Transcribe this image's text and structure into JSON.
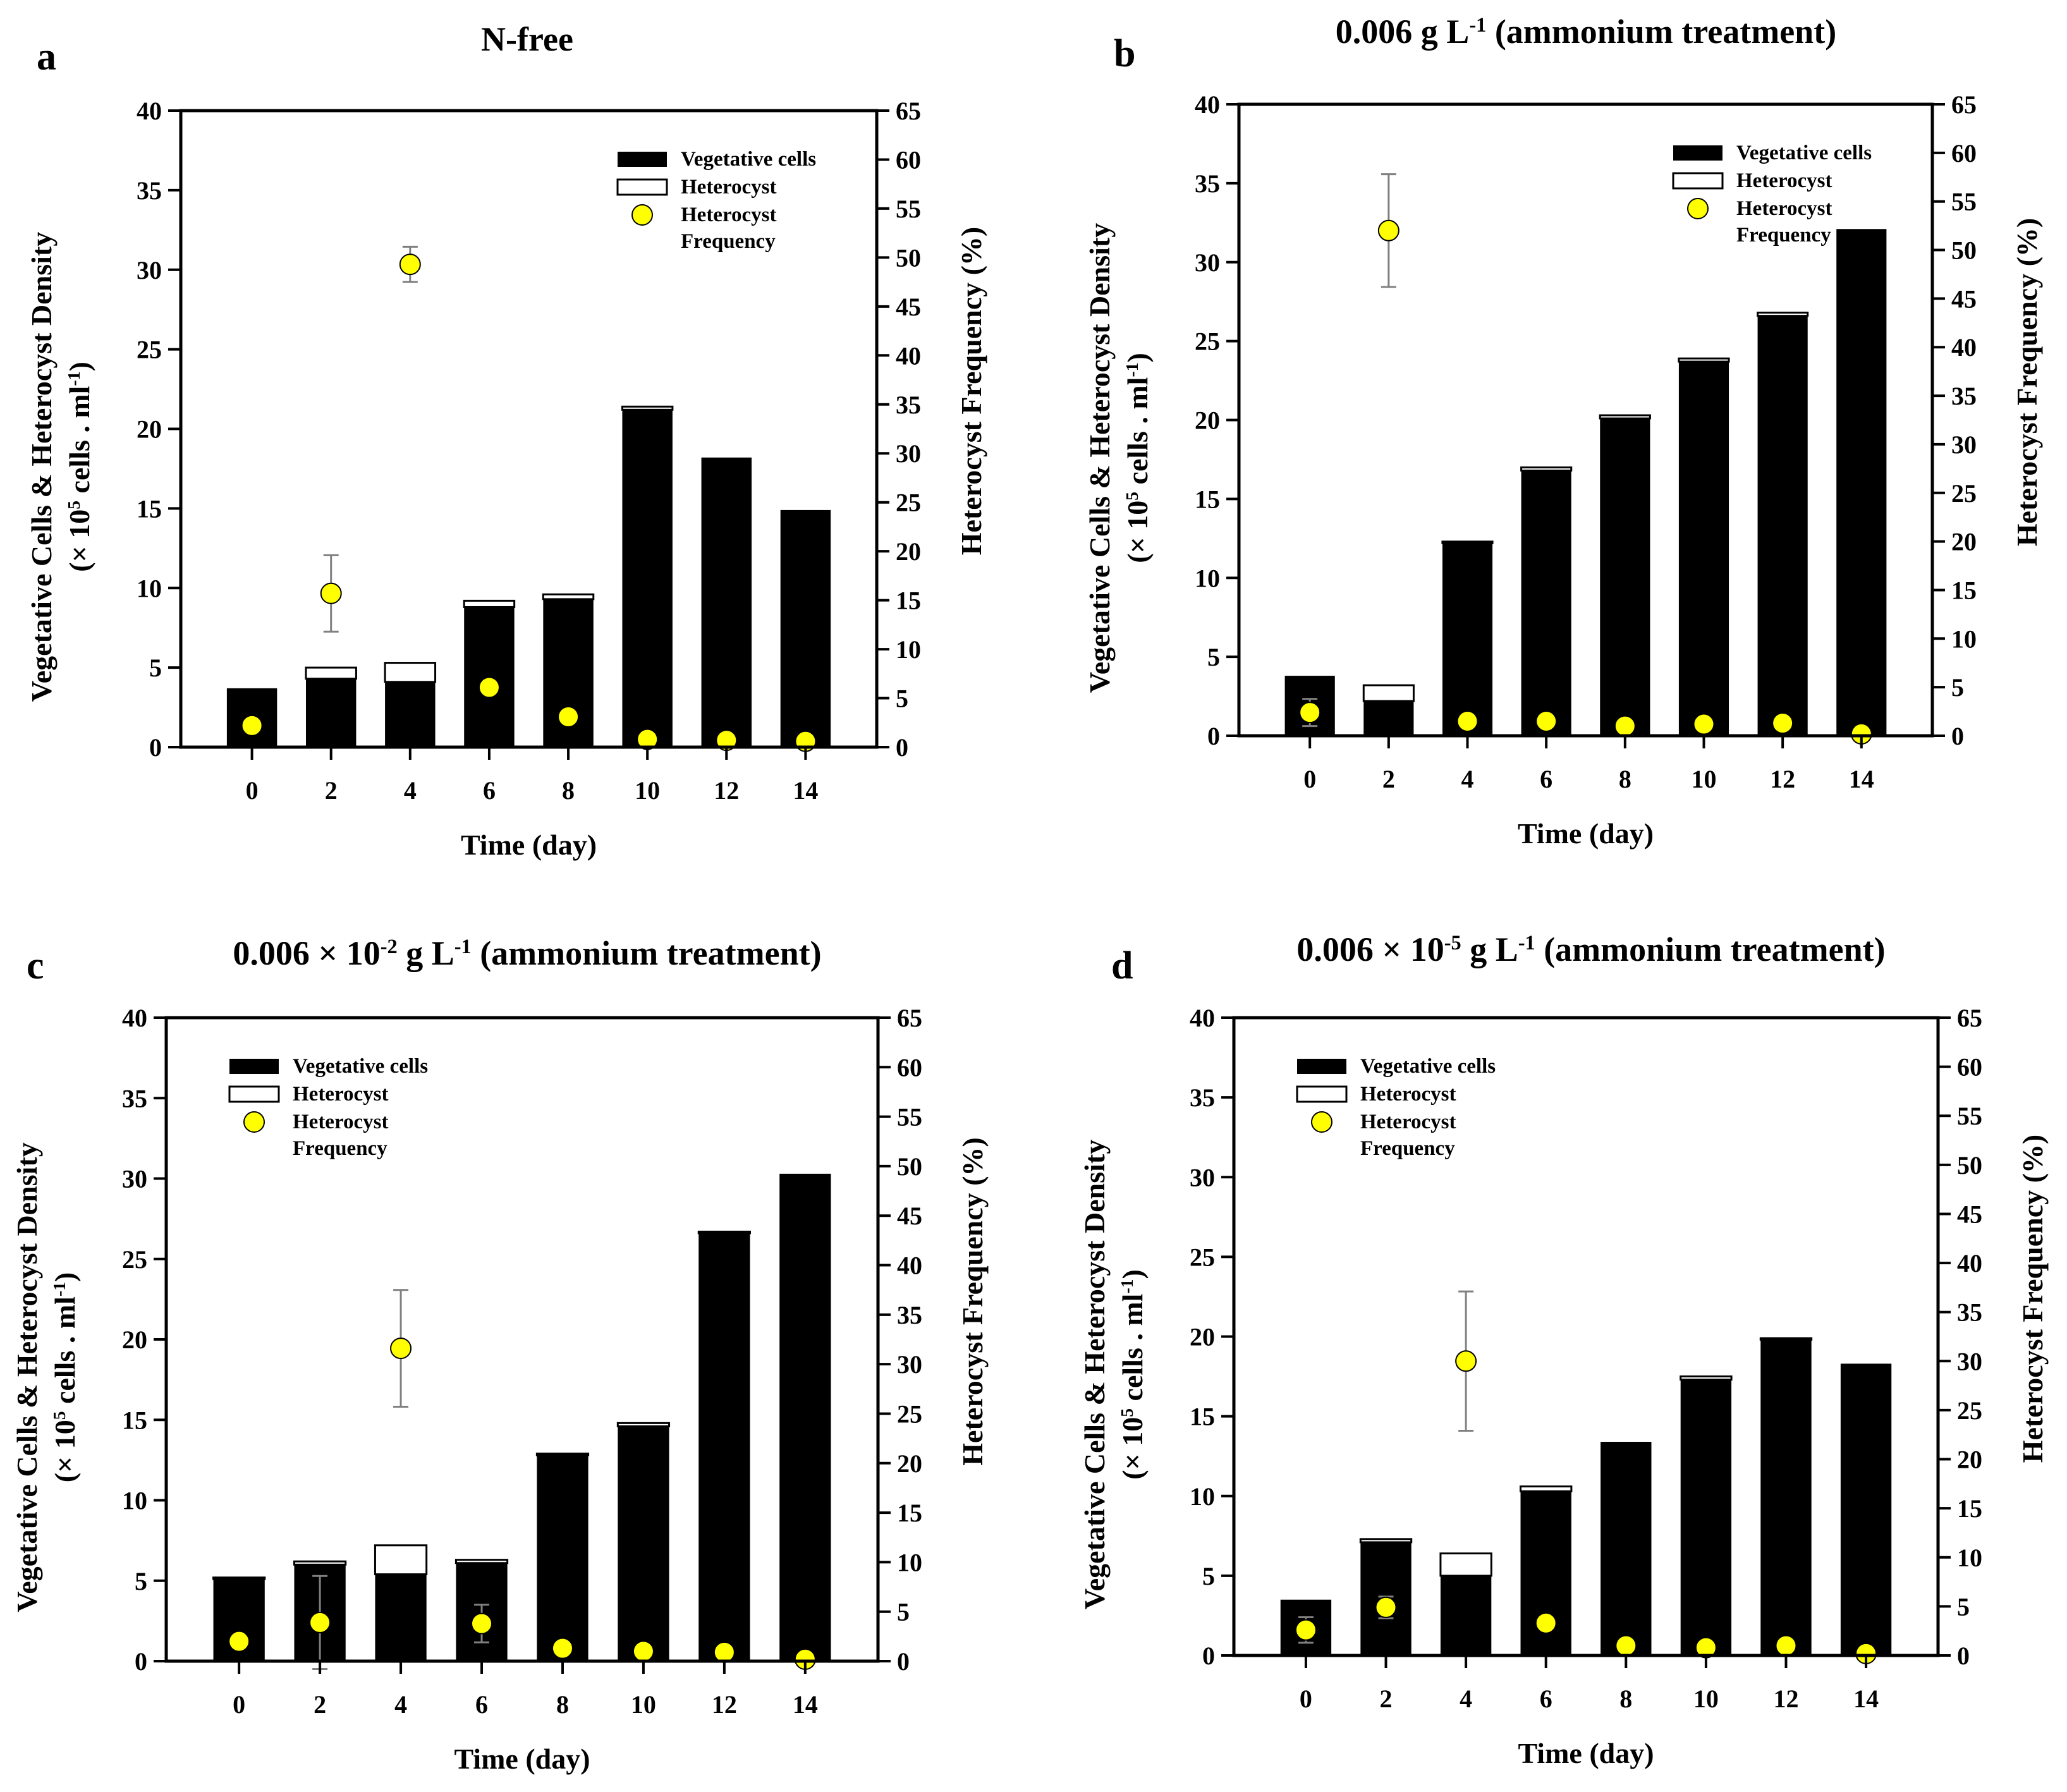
{
  "chart_data": [
    {
      "panel": "a",
      "type": "bar",
      "title": [
        "N-free"
      ],
      "title_sup": [],
      "x": [
        0,
        2,
        4,
        6,
        8,
        10,
        12,
        14
      ],
      "series": [
        {
          "name": "Vegetative cells",
          "axis": "left",
          "values": [
            3.7,
            4.3,
            4.1,
            8.8,
            9.3,
            21.2,
            18.2,
            14.9
          ]
        },
        {
          "name": "Heterocyst",
          "axis": "left",
          "values": [
            0.0,
            0.7,
            1.2,
            0.4,
            0.3,
            0.2,
            0.0,
            0.0
          ]
        },
        {
          "name": "Heterocyst Frequency",
          "axis": "right",
          "type": "scatter",
          "values": [
            2.2,
            15.7,
            49.3,
            6.1,
            3.1,
            0.8,
            0.7,
            0.6
          ],
          "errors": [
            0.3,
            3.9,
            1.8,
            0.4,
            0.3,
            0.2,
            0.2,
            0.2
          ]
        }
      ],
      "legend": "top-right"
    },
    {
      "panel": "b",
      "type": "bar",
      "title": [
        "0.006 g L",
        "-1",
        " (ammonium treatment)"
      ],
      "x": [
        0,
        2,
        4,
        6,
        8,
        10,
        12,
        14
      ],
      "series": [
        {
          "name": "Vegetative cells",
          "axis": "left",
          "values": [
            3.8,
            2.2,
            12.2,
            16.8,
            20.1,
            23.7,
            26.6,
            32.1
          ]
        },
        {
          "name": "Heterocyst",
          "axis": "left",
          "values": [
            0.0,
            1.0,
            0.1,
            0.2,
            0.2,
            0.2,
            0.2,
            0.0
          ]
        },
        {
          "name": "Heterocyst Frequency",
          "axis": "right",
          "type": "scatter",
          "values": [
            2.4,
            52.0,
            1.5,
            1.5,
            1.0,
            1.2,
            1.3,
            0.2
          ],
          "errors": [
            1.4,
            5.8,
            0.2,
            0.2,
            0.2,
            0.2,
            0.2,
            0.1
          ]
        }
      ],
      "legend": "top-right"
    },
    {
      "panel": "c",
      "type": "bar",
      "title": [
        "0.006 × 10",
        "-2",
        " g L",
        "-1",
        " (ammonium treatment)"
      ],
      "x": [
        0,
        2,
        4,
        6,
        8,
        10,
        12,
        14
      ],
      "series": [
        {
          "name": "Vegetative cells",
          "axis": "left",
          "values": [
            5.1,
            6.0,
            5.4,
            6.1,
            12.8,
            14.6,
            26.6,
            30.3
          ]
        },
        {
          "name": "Heterocyst",
          "axis": "left",
          "values": [
            0.1,
            0.2,
            1.8,
            0.2,
            0.1,
            0.2,
            0.1,
            0.0
          ]
        },
        {
          "name": "Heterocyst Frequency",
          "axis": "right",
          "type": "scatter",
          "values": [
            2.0,
            3.9,
            31.6,
            3.8,
            1.3,
            1.0,
            0.9,
            0.2
          ],
          "errors": [
            0.3,
            4.7,
            5.9,
            1.9,
            0.2,
            0.2,
            0.2,
            0.1
          ]
        }
      ],
      "legend": "top-left"
    },
    {
      "panel": "d",
      "type": "bar",
      "title": [
        "0.006 × 10",
        "-5",
        " g L",
        "-1",
        " (ammonium treatment)"
      ],
      "x": [
        0,
        2,
        4,
        6,
        8,
        10,
        12,
        14
      ],
      "series": [
        {
          "name": "Vegetative cells",
          "axis": "left",
          "values": [
            3.5,
            7.1,
            5.0,
            10.3,
            13.4,
            17.3,
            19.8,
            18.3
          ]
        },
        {
          "name": "Heterocyst",
          "axis": "left",
          "values": [
            0.0,
            0.2,
            1.4,
            0.3,
            0.0,
            0.2,
            0.1,
            0.0
          ]
        },
        {
          "name": "Heterocyst Frequency",
          "axis": "right",
          "type": "scatter",
          "values": [
            2.6,
            4.9,
            30.0,
            3.3,
            1.0,
            0.8,
            1.0,
            0.2
          ],
          "errors": [
            1.3,
            1.1,
            7.1,
            0.3,
            0.2,
            0.2,
            0.2,
            0.1
          ]
        }
      ],
      "legend": "top-left"
    }
  ],
  "axes": {
    "xlabel": "Time (day)",
    "ylabel_left_line1": "Vegetative Cells & Heterocyst Density",
    "ylabel_left_line2": [
      "(× 10",
      "5",
      " cells . ml",
      "-1",
      ")"
    ],
    "ylabel_right": "Heterocyst Frequency (%)",
    "ylim_left": [
      0,
      40
    ],
    "ystep_left": 5,
    "ylim_right": [
      0,
      65
    ],
    "ystep_right": 5,
    "xticks": [
      "0",
      "2",
      "4",
      "6",
      "8",
      "10",
      "12",
      "14"
    ]
  },
  "legend_labels": {
    "veg": "Vegetative cells",
    "het": "Heterocyst",
    "freq1": "Heterocyst",
    "freq2": "Frequency"
  },
  "colors": {
    "vegetative": "#000000",
    "heterocyst": "#ffffff",
    "frequency": "#ffff00",
    "error_bar": "#808080"
  }
}
